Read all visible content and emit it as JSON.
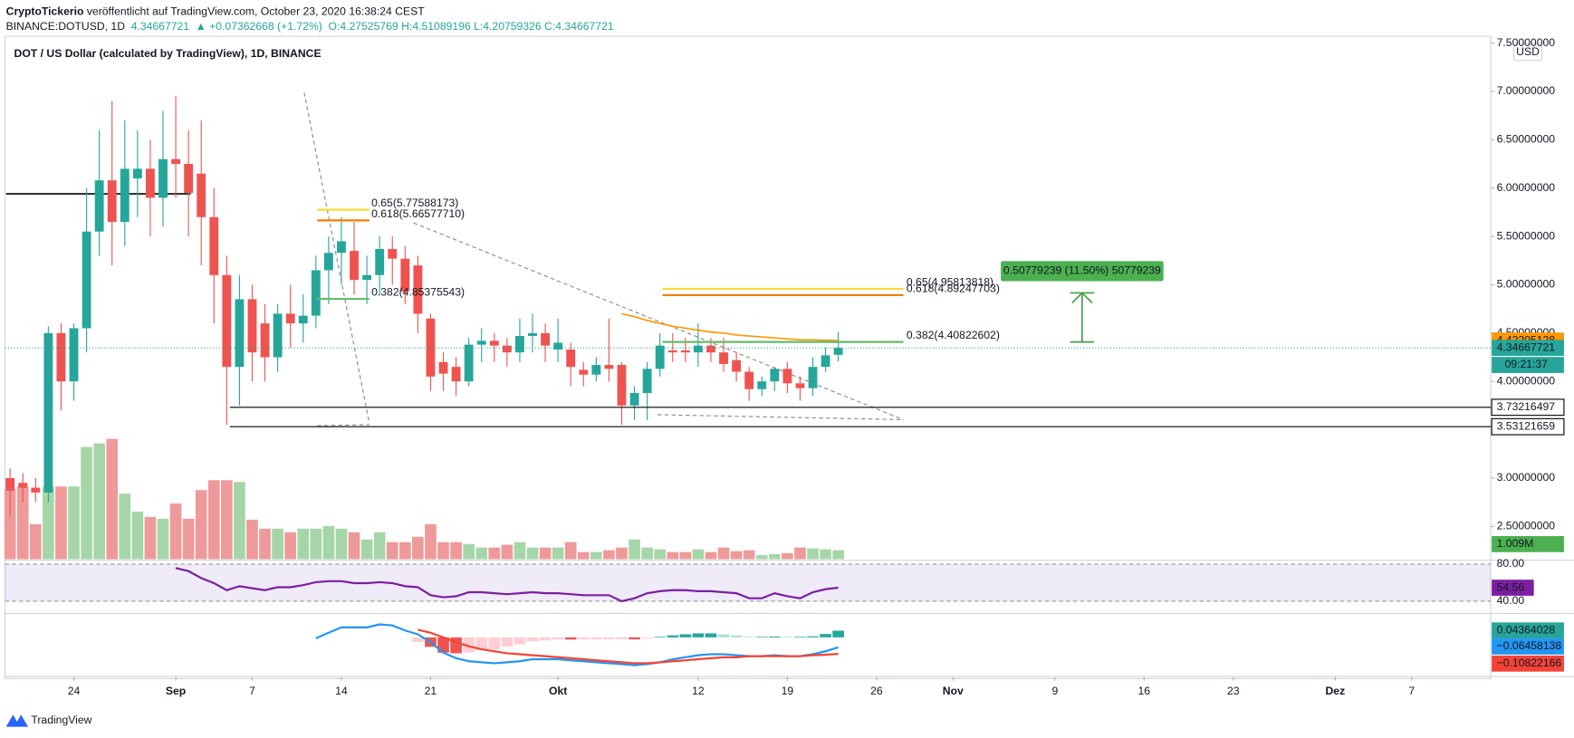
{
  "header": {
    "author": "CryptoTickerio",
    "published": " veröffentlicht auf TradingView.com, October 23, 2020 16:38:24 CEST",
    "symbol": "BINANCE:DOTUSD, 1D",
    "last": "4.34667721",
    "change": "▲ +0.07362668 (+1.72%)",
    "ohlc": "O:4.27525769 H:4.51089196 L:4.20759326 C:4.34667721"
  },
  "footer": "TradingView",
  "chart_data": {
    "type": "candlestick",
    "title": "DOT / US Dollar (calculated by TradingView), 1D, BINANCE",
    "currency": "USD",
    "up_color": "#26a69a",
    "down_color": "#ef5350",
    "open": [
      3.0,
      2.95,
      2.9,
      2.85,
      4.5,
      4.0,
      4.55,
      5.55,
      6.08,
      5.65,
      6.1,
      6.2,
      5.9,
      6.3,
      6.25,
      6.15,
      5.7,
      5.1,
      4.15,
      4.85,
      4.6,
      4.25,
      4.7,
      4.6,
      4.68,
      5.15,
      5.33,
      5.35,
      5.05,
      5.1,
      5.37,
      5.27,
      5.2,
      4.65,
      4.2,
      4.15,
      4.0,
      4.38,
      4.42,
      4.37,
      4.3,
      4.47,
      4.5,
      4.33,
      4.33,
      4.12,
      4.07,
      4.17,
      4.17,
      3.75,
      3.88,
      4.13,
      4.32,
      4.32,
      4.3,
      4.37,
      4.3,
      4.22,
      4.1,
      3.92,
      4.0,
      4.13,
      3.98,
      3.93,
      4.15,
      4.27525769
    ],
    "high": [
      3.1,
      3.05,
      3.0,
      4.57,
      4.6,
      4.6,
      6.0,
      6.6,
      6.9,
      6.7,
      6.6,
      6.5,
      6.8,
      6.95,
      6.6,
      6.7,
      6.0,
      5.3,
      5.1,
      5.0,
      4.8,
      4.8,
      5.0,
      4.9,
      5.3,
      5.5,
      5.7,
      5.65,
      5.3,
      5.5,
      5.5,
      5.4,
      5.3,
      4.7,
      4.3,
      4.25,
      4.45,
      4.55,
      4.5,
      4.45,
      4.65,
      4.7,
      4.6,
      4.65,
      4.4,
      4.2,
      4.25,
      4.65,
      4.2,
      3.95,
      4.2,
      4.5,
      4.5,
      4.45,
      4.6,
      4.45,
      4.45,
      4.3,
      4.15,
      4.05,
      4.15,
      4.2,
      4.05,
      4.25,
      4.35,
      4.51089196
    ],
    "low": [
      2.6,
      2.75,
      2.75,
      2.75,
      3.7,
      3.8,
      4.3,
      5.3,
      5.2,
      5.4,
      5.7,
      5.5,
      5.6,
      5.9,
      5.5,
      5.2,
      4.6,
      3.55,
      3.75,
      4.0,
      4.0,
      4.1,
      4.35,
      4.4,
      4.55,
      4.8,
      5.0,
      4.9,
      4.8,
      4.9,
      5.0,
      4.8,
      4.5,
      3.9,
      3.9,
      3.85,
      3.95,
      4.2,
      4.2,
      4.15,
      4.2,
      4.3,
      4.2,
      4.2,
      3.95,
      3.95,
      4.0,
      4.0,
      3.55,
      3.6,
      3.6,
      4.05,
      4.2,
      4.2,
      4.15,
      4.2,
      4.1,
      4.0,
      3.8,
      3.85,
      3.9,
      3.88,
      3.8,
      3.85,
      4.1,
      4.20759326
    ],
    "close": [
      2.87,
      2.9,
      2.85,
      4.5,
      4.0,
      4.55,
      5.55,
      6.08,
      5.65,
      6.2,
      6.2,
      5.9,
      6.3,
      6.25,
      5.95,
      5.7,
      5.1,
      4.15,
      4.85,
      4.3,
      4.25,
      4.7,
      4.6,
      4.68,
      5.15,
      5.33,
      5.45,
      5.05,
      5.1,
      5.37,
      5.27,
      4.93,
      4.7,
      4.05,
      4.08,
      4.0,
      4.38,
      4.42,
      4.37,
      4.3,
      4.47,
      4.5,
      4.37,
      4.4,
      4.15,
      4.07,
      4.17,
      4.13,
      3.75,
      3.88,
      4.13,
      4.37,
      4.3,
      4.3,
      4.37,
      4.3,
      4.18,
      4.1,
      3.92,
      4.0,
      4.13,
      3.98,
      3.93,
      4.15,
      4.27,
      4.34667721
    ],
    "ma": {
      "color": "#ff9800",
      "values": [
        null,
        null,
        null,
        null,
        null,
        null,
        null,
        null,
        null,
        null,
        null,
        null,
        null,
        null,
        null,
        null,
        null,
        null,
        null,
        null,
        null,
        null,
        null,
        null,
        null,
        null,
        null,
        null,
        null,
        null,
        null,
        null,
        null,
        null,
        null,
        null,
        null,
        null,
        null,
        null,
        null,
        null,
        null,
        null,
        null,
        null,
        null,
        null,
        4.7,
        4.67,
        4.63,
        4.6,
        4.57,
        4.55,
        4.53,
        4.51,
        4.5,
        4.48,
        4.47,
        4.46,
        4.45,
        4.44,
        4.43,
        4.43,
        4.425,
        4.42205128
      ]
    },
    "ylim": [
      2.15,
      7.55
    ],
    "yticks": [
      {
        "value": 7.5,
        "label": "7.50000000"
      },
      {
        "value": 7,
        "label": "7.00000000"
      },
      {
        "value": 6.5,
        "label": "6.50000000"
      },
      {
        "value": 6,
        "label": "6.00000000"
      },
      {
        "value": 5.5,
        "label": "5.50000000"
      },
      {
        "value": 5,
        "label": "5.00000000"
      },
      {
        "value": 4.5,
        "label": "4.50000000"
      },
      {
        "value": 4,
        "label": "4.00000000"
      },
      {
        "value": 3,
        "label": "3.00000000"
      },
      {
        "value": 2.5,
        "label": "2.50000000"
      }
    ],
    "xlim": [
      -0.4,
      116.2
    ],
    "xticks": [
      {
        "value": 5,
        "label": "24"
      },
      {
        "value": 13,
        "label": "Sep"
      },
      {
        "value": 19,
        "label": "7"
      },
      {
        "value": 26,
        "label": "14"
      },
      {
        "value": 33,
        "label": "21"
      },
      {
        "value": 43,
        "label": "Okt"
      },
      {
        "value": 54,
        "label": "12"
      },
      {
        "value": 61,
        "label": "19"
      },
      {
        "value": 68,
        "label": "26"
      },
      {
        "value": 74,
        "label": "Nov"
      },
      {
        "value": 82,
        "label": "9"
      },
      {
        "value": 89,
        "label": "16"
      },
      {
        "value": 96,
        "label": "23"
      },
      {
        "value": 104,
        "label": "Dez"
      },
      {
        "value": 110,
        "label": "7"
      }
    ],
    "price_labels": [
      {
        "value": 4.42205128,
        "label": "4.42205128",
        "color": "#ff9800",
        "text_color": "#000000"
      },
      {
        "value": 4.34667721,
        "label": "4.34667721",
        "color": "#26a69a",
        "text_color": "#ffffff"
      },
      {
        "value": 3.73216497,
        "label": "3.73216497",
        "color": "#ffffff",
        "text_color": "#000000",
        "line": true
      },
      {
        "value": 3.53121659,
        "label": "3.53121659",
        "color": "#ffffff",
        "text_color": "#000000",
        "line": true
      }
    ],
    "countdown": "09:21:37",
    "fib_levels": [
      {
        "value": 5.77588173,
        "label": "0.65(5.77588173)",
        "color": "#fdd835"
      },
      {
        "value": 5.6657771,
        "label": "0.618(5.66577710)",
        "color": "#f57c00"
      },
      {
        "value": 4.85375543,
        "label": "0.382(4.85375543)",
        "color": "#66bb6a"
      },
      {
        "value": 4.95813818,
        "label": "0.65(4.95813818)",
        "color": "#fdd835"
      },
      {
        "value": 4.89247703,
        "label": "0.618(4.89247703)",
        "color": "#f57c00"
      },
      {
        "value": 4.40822602,
        "label": "0.382(4.40822602)",
        "color": "#66bb6a"
      }
    ],
    "measure": {
      "label": "0.50779239 (11.50%) 50779239",
      "from": 4.40822602,
      "to": 4.91601841
    },
    "volume": {
      "ylim": [
        0,
        18
      ],
      "values": [
        7.8,
        8.1,
        3.9,
        8.1,
        8.1,
        8.1,
        12.5,
        12.9,
        13.4,
        7.3,
        5.3,
        4.7,
        4.5,
        6.2,
        4.5,
        7.7,
        8.8,
        8.8,
        8.6,
        4.4,
        3.4,
        3.4,
        3.0,
        3.4,
        3.4,
        3.7,
        3.4,
        3.0,
        2.2,
        3.0,
        1.9,
        1.9,
        2.5,
        3.9,
        1.9,
        1.9,
        1.7,
        1.3,
        1.3,
        1.6,
        1.9,
        1.3,
        1.3,
        1.3,
        1.9,
        0.8,
        0.8,
        1.0,
        1.3,
        2.2,
        1.3,
        1.1,
        0.8,
        0.8,
        1.1,
        0.8,
        1.3,
        0.9,
        1.0,
        0.45,
        0.56,
        0.67,
        1.3,
        1.2,
        1.1,
        1.009
      ],
      "value_label": "1.009M"
    },
    "rsi": {
      "color": "#7b1fa2",
      "ylim": [
        28,
        82
      ],
      "yticks": [
        {
          "value": 80,
          "label": "80.00"
        },
        {
          "value": 40,
          "label": "40.00"
        }
      ],
      "value_label": "54.56",
      "values": [
        null,
        null,
        null,
        null,
        null,
        null,
        null,
        null,
        null,
        null,
        null,
        null,
        null,
        75.7,
        72.4,
        64.9,
        59.5,
        51.9,
        56.2,
        54,
        51.9,
        55.1,
        55.1,
        57.3,
        60.5,
        61.6,
        61.6,
        59.5,
        59.5,
        60.5,
        59.5,
        56.2,
        55.1,
        46.5,
        44.3,
        45.3,
        49.7,
        49.7,
        48.6,
        47.6,
        48.6,
        49.7,
        48.6,
        48.6,
        47.6,
        46.5,
        46.5,
        46.5,
        40,
        43.2,
        48.6,
        50.8,
        51.9,
        51.9,
        50.8,
        50.8,
        49.7,
        48.6,
        43.2,
        43.2,
        48.6,
        45.4,
        43.2,
        49.7,
        53,
        54.56
      ]
    },
    "macd": {
      "ylim": [
        -0.25,
        0.15
      ],
      "histogram": {
        "value_label": "0.04364028",
        "values": [
          null,
          null,
          null,
          null,
          null,
          null,
          null,
          null,
          null,
          null,
          null,
          null,
          null,
          null,
          null,
          null,
          null,
          null,
          null,
          null,
          null,
          null,
          null,
          null,
          null,
          null,
          null,
          null,
          null,
          null,
          null,
          null,
          -0.03,
          -0.062,
          -0.1,
          -0.104,
          -0.098,
          -0.085,
          -0.078,
          -0.059,
          -0.046,
          -0.026,
          -0.02,
          -0.013,
          -0.014,
          -0.013,
          -0.013,
          -0.013,
          -0.012,
          -0.013,
          -0.006,
          0.004,
          0.013,
          0.02,
          0.026,
          0.026,
          0.02,
          0.013,
          0.004,
          0.004,
          0.006,
          0.004,
          0.004,
          0.007,
          0.022,
          0.04364028
        ]
      },
      "macd_line": {
        "color": "#2196f3",
        "value_label": "−0.06458138",
        "values": [
          null,
          null,
          null,
          null,
          null,
          null,
          null,
          null,
          null,
          null,
          null,
          null,
          null,
          null,
          null,
          null,
          null,
          null,
          null,
          null,
          null,
          null,
          null,
          null,
          -0.006,
          0.03,
          0.065,
          0.065,
          0.065,
          0.085,
          0.078,
          0.045,
          0.02,
          -0.032,
          -0.1,
          -0.136,
          -0.156,
          -0.163,
          -0.169,
          -0.163,
          -0.156,
          -0.143,
          -0.143,
          -0.143,
          -0.15,
          -0.156,
          -0.163,
          -0.169,
          -0.175,
          -0.182,
          -0.175,
          -0.163,
          -0.143,
          -0.13,
          -0.117,
          -0.11,
          -0.11,
          -0.117,
          -0.123,
          -0.123,
          -0.117,
          -0.123,
          -0.123,
          -0.11,
          -0.091,
          -0.06458138
        ]
      },
      "signal": {
        "color": "#f44336",
        "value_label": "−0.10822166",
        "values": [
          null,
          null,
          null,
          null,
          null,
          null,
          null,
          null,
          null,
          null,
          null,
          null,
          null,
          null,
          null,
          null,
          null,
          null,
          null,
          null,
          null,
          null,
          null,
          null,
          null,
          null,
          null,
          null,
          null,
          null,
          null,
          null,
          0.05,
          0.03,
          0,
          -0.032,
          -0.058,
          -0.078,
          -0.091,
          -0.104,
          -0.11,
          -0.117,
          -0.123,
          -0.13,
          -0.136,
          -0.143,
          -0.15,
          -0.156,
          -0.163,
          -0.169,
          -0.169,
          -0.163,
          -0.156,
          -0.15,
          -0.143,
          -0.136,
          -0.13,
          -0.13,
          -0.123,
          -0.123,
          -0.123,
          -0.123,
          -0.123,
          -0.117,
          -0.113,
          -0.10822166
        ]
      }
    }
  }
}
